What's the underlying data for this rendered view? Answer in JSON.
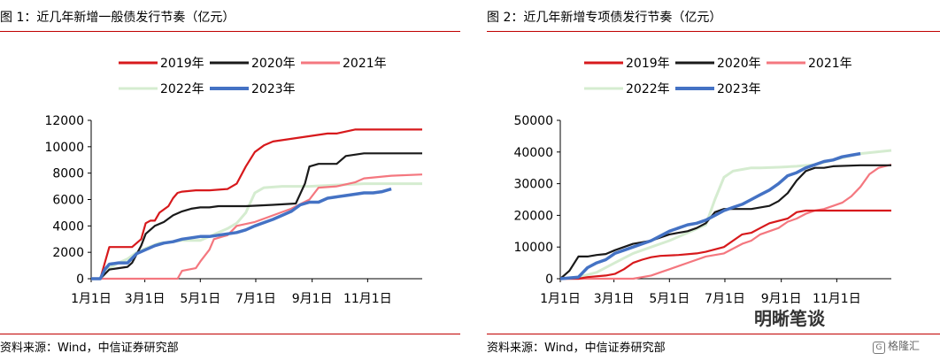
{
  "watermark": "明晰笔谈",
  "logo_text": "格隆汇",
  "chart_data": [
    {
      "type": "line",
      "title": "图 1：近几年新增一般债发行节奏（亿元）",
      "source": "资料来源：Wind，中信证券研究部",
      "xlabel": "",
      "ylabel": "",
      "x_ticks": [
        "1月1日",
        "3月1日",
        "5月1日",
        "7月1日",
        "9月1日",
        "11月1日"
      ],
      "x_tick_days": [
        0,
        59,
        120,
        181,
        243,
        304
      ],
      "xlim": [
        0,
        364
      ],
      "ylim": [
        0,
        12000
      ],
      "y_ticks": [
        0,
        2000,
        4000,
        6000,
        8000,
        10000,
        12000
      ],
      "legend_position": "top",
      "series": [
        {
          "name": "2019年",
          "color": "#d7191c",
          "days": [
            0,
            10,
            20,
            28,
            30,
            45,
            55,
            60,
            65,
            70,
            75,
            85,
            90,
            95,
            100,
            115,
            130,
            150,
            160,
            170,
            180,
            190,
            200,
            230,
            240,
            260,
            270,
            290,
            300,
            330,
            364
          ],
          "values": [
            0,
            0,
            2400,
            2400,
            2400,
            2400,
            3000,
            4200,
            4400,
            4400,
            5000,
            5500,
            6100,
            6500,
            6600,
            6700,
            6700,
            6800,
            7200,
            8500,
            9600,
            10100,
            10400,
            10700,
            10800,
            11000,
            11000,
            11300,
            11300,
            11300,
            11300
          ]
        },
        {
          "name": "2020年",
          "color": "#1a1a1a",
          "days": [
            0,
            10,
            20,
            30,
            40,
            45,
            55,
            60,
            70,
            80,
            90,
            100,
            110,
            120,
            130,
            140,
            150,
            170,
            200,
            225,
            235,
            240,
            250,
            270,
            280,
            300,
            330,
            364
          ],
          "values": [
            0,
            0,
            700,
            800,
            900,
            1200,
            2500,
            3400,
            4000,
            4300,
            4800,
            5100,
            5300,
            5400,
            5400,
            5500,
            5500,
            5500,
            5600,
            5700,
            7200,
            8500,
            8700,
            8700,
            9300,
            9500,
            9500,
            9500
          ]
        },
        {
          "name": "2021年",
          "color": "#f4777f",
          "days": [
            0,
            60,
            80,
            95,
            100,
            115,
            120,
            130,
            135,
            150,
            160,
            180,
            200,
            220,
            240,
            250,
            270,
            290,
            300,
            330,
            364
          ],
          "values": [
            0,
            0,
            0,
            0,
            600,
            800,
            1300,
            2200,
            3000,
            3300,
            4000,
            4300,
            4800,
            5300,
            6000,
            6900,
            7000,
            7300,
            7600,
            7800,
            7900
          ]
        },
        {
          "name": "2022年",
          "color": "#d5ecd0",
          "days": [
            0,
            10,
            20,
            30,
            40,
            50,
            60,
            75,
            90,
            100,
            110,
            120,
            130,
            140,
            150,
            160,
            170,
            180,
            190,
            210,
            240,
            270,
            300,
            364
          ],
          "values": [
            0,
            0,
            800,
            1200,
            1500,
            2000,
            2300,
            2700,
            2800,
            2900,
            2900,
            2900,
            3200,
            3500,
            3800,
            4200,
            5000,
            6500,
            6900,
            7000,
            7000,
            7100,
            7200,
            7200
          ]
        },
        {
          "name": "2023年",
          "color": "#4472c4",
          "days": [
            0,
            10,
            15,
            20,
            30,
            40,
            50,
            60,
            70,
            80,
            90,
            100,
            110,
            120,
            130,
            140,
            150,
            160,
            170,
            180,
            200,
            210,
            220,
            230,
            240,
            250,
            260,
            270,
            280,
            290,
            300,
            310,
            320,
            330
          ],
          "values": [
            0,
            0,
            700,
            1100,
            1200,
            1200,
            1900,
            2200,
            2500,
            2700,
            2800,
            3000,
            3100,
            3200,
            3200,
            3300,
            3400,
            3500,
            3700,
            4000,
            4500,
            4800,
            5100,
            5600,
            5800,
            5800,
            6100,
            6200,
            6300,
            6400,
            6500,
            6500,
            6600,
            6800
          ]
        }
      ]
    },
    {
      "type": "line",
      "title": "图 2：近几年新增专项债发行节奏（亿元）",
      "source": "资料来源：Wind，中信证券研究部",
      "xlabel": "",
      "ylabel": "",
      "x_ticks": [
        "1月1日",
        "3月1日",
        "5月1日",
        "7月1日",
        "9月1日",
        "11月1日"
      ],
      "x_tick_days": [
        0,
        59,
        120,
        181,
        243,
        304
      ],
      "xlim": [
        0,
        364
      ],
      "ylim": [
        0,
        50000
      ],
      "y_ticks": [
        0,
        10000,
        20000,
        30000,
        40000,
        50000
      ],
      "legend_position": "top",
      "series": [
        {
          "name": "2019年",
          "color": "#d7191c",
          "days": [
            0,
            20,
            30,
            50,
            60,
            70,
            80,
            90,
            100,
            110,
            130,
            150,
            160,
            180,
            190,
            200,
            210,
            220,
            230,
            250,
            260,
            270,
            300,
            330,
            364
          ],
          "values": [
            0,
            0,
            500,
            1000,
            1500,
            3000,
            5000,
            6000,
            6800,
            7200,
            7500,
            8000,
            8500,
            10000,
            12000,
            14000,
            14500,
            16000,
            17500,
            19000,
            21000,
            21500,
            21500,
            21500,
            21500
          ]
        },
        {
          "name": "2020年",
          "color": "#1a1a1a",
          "days": [
            0,
            10,
            20,
            30,
            40,
            50,
            60,
            70,
            80,
            90,
            100,
            110,
            120,
            130,
            140,
            150,
            160,
            170,
            180,
            190,
            210,
            230,
            240,
            250,
            260,
            270,
            280,
            290,
            300,
            330,
            364
          ],
          "values": [
            0,
            2500,
            7000,
            7000,
            7500,
            7800,
            9000,
            10000,
            11000,
            11500,
            12000,
            13000,
            14000,
            14500,
            15000,
            16000,
            17500,
            21000,
            22000,
            22000,
            22000,
            23000,
            24500,
            27000,
            31000,
            34000,
            35000,
            35000,
            35500,
            35800,
            35800
          ]
        },
        {
          "name": "2021年",
          "color": "#f4777f",
          "days": [
            0,
            60,
            80,
            100,
            110,
            120,
            130,
            140,
            160,
            180,
            190,
            200,
            210,
            220,
            230,
            240,
            250,
            260,
            270,
            280,
            290,
            300,
            310,
            320,
            330,
            340,
            350,
            364
          ],
          "values": [
            0,
            0,
            0,
            1000,
            2000,
            3000,
            4000,
            5000,
            7000,
            8000,
            9500,
            11000,
            12000,
            14000,
            15000,
            16000,
            18000,
            19000,
            20500,
            21500,
            22000,
            23000,
            24000,
            26000,
            29000,
            33000,
            35000,
            36000
          ]
        },
        {
          "name": "2022年",
          "color": "#d5ecd0",
          "days": [
            0,
            20,
            40,
            60,
            80,
            100,
            120,
            140,
            160,
            170,
            180,
            190,
            200,
            210,
            220,
            240,
            260,
            280,
            300,
            330,
            364
          ],
          "values": [
            0,
            500,
            2000,
            5000,
            8000,
            10000,
            12000,
            14500,
            17000,
            25000,
            32000,
            34000,
            34500,
            35000,
            35000,
            35200,
            35500,
            36000,
            37500,
            39500,
            40500
          ]
        },
        {
          "name": "2023年",
          "color": "#4472c4",
          "days": [
            0,
            20,
            30,
            40,
            50,
            60,
            70,
            80,
            90,
            100,
            110,
            120,
            130,
            140,
            150,
            160,
            170,
            180,
            190,
            200,
            210,
            220,
            230,
            240,
            250,
            260,
            270,
            280,
            290,
            300,
            310,
            320,
            330
          ],
          "values": [
            0,
            500,
            3500,
            5000,
            6000,
            8000,
            9000,
            10000,
            11000,
            12000,
            13500,
            15000,
            16000,
            17000,
            17500,
            18500,
            20000,
            21500,
            22500,
            23500,
            25000,
            26500,
            28000,
            30000,
            32500,
            33500,
            35000,
            36000,
            37000,
            37500,
            38500,
            39000,
            39500
          ]
        }
      ]
    }
  ]
}
